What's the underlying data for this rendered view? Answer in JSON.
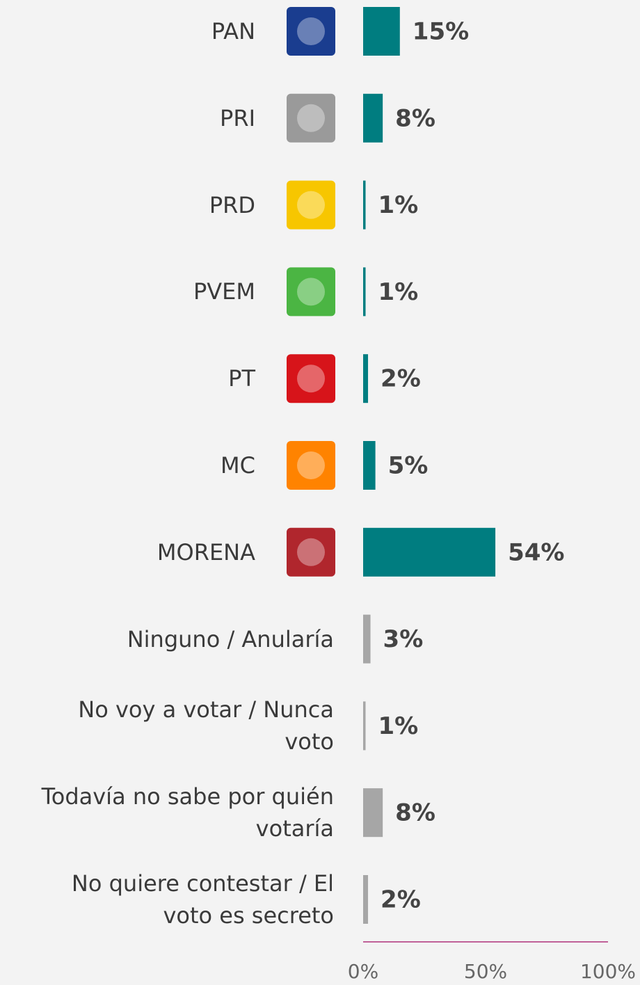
{
  "chart_data": {
    "type": "barh",
    "categories": [
      "PAN",
      "PRI",
      "PRD",
      "PVEM",
      "PT",
      "MC",
      "MORENA",
      "Ninguno / Anularía",
      "No voy a votar / Nunca\nvoto",
      "Todavía no sabe por quién\nvotaría",
      "No quiere contestar / El\nvoto es secreto"
    ],
    "values": [
      15,
      8,
      1,
      1,
      2,
      5,
      54,
      3,
      1,
      8,
      2
    ],
    "value_labels": [
      "15%",
      "8%",
      "1%",
      "1%",
      "2%",
      "5%",
      "54%",
      "3%",
      "1%",
      "8%",
      "2%"
    ],
    "colors": [
      "#007d80",
      "#007d80",
      "#007d80",
      "#007d80",
      "#007d80",
      "#007d80",
      "#007d80",
      "#a6a6a6",
      "#a6a6a6",
      "#a6a6a6",
      "#a6a6a6"
    ],
    "xlim": [
      0,
      100
    ],
    "xticks": [
      {
        "value": 0,
        "label": "0%"
      },
      {
        "value": 50,
        "label": "50%"
      },
      {
        "value": 100,
        "label": "100%"
      }
    ],
    "axis_color": "#b0307a"
  }
}
